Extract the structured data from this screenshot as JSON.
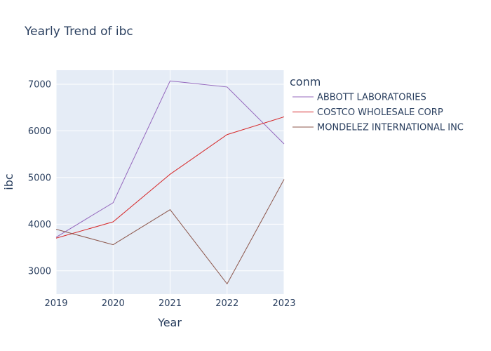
{
  "chart_data": {
    "type": "line",
    "title": "Yearly Trend of ibc",
    "xlabel": "Year",
    "ylabel": "ibc",
    "x": [
      2019,
      2020,
      2021,
      2022,
      2023
    ],
    "x_ticks": [
      "2019",
      "2020",
      "2021",
      "2022",
      "2023"
    ],
    "y_ticks": [
      "3000",
      "4000",
      "5000",
      "6000",
      "7000"
    ],
    "xlim": [
      2019,
      2023
    ],
    "ylim": [
      2500,
      7300
    ],
    "grid": true,
    "legend_title": "conm",
    "legend_position": "right",
    "background_color": "#e5ecf6",
    "series": [
      {
        "name": "ABBOTT LABORATORIES",
        "color": "#9467bd",
        "values": [
          3720,
          4460,
          7070,
          6940,
          5720
        ]
      },
      {
        "name": "COSTCO WHOLESALE CORP",
        "color": "#d62728",
        "values": [
          3700,
          4050,
          5070,
          5920,
          6300
        ]
      },
      {
        "name": "MONDELEZ INTERNATIONAL INC",
        "color": "#8c564b",
        "values": [
          3890,
          3560,
          4310,
          2720,
          4960
        ]
      }
    ]
  }
}
